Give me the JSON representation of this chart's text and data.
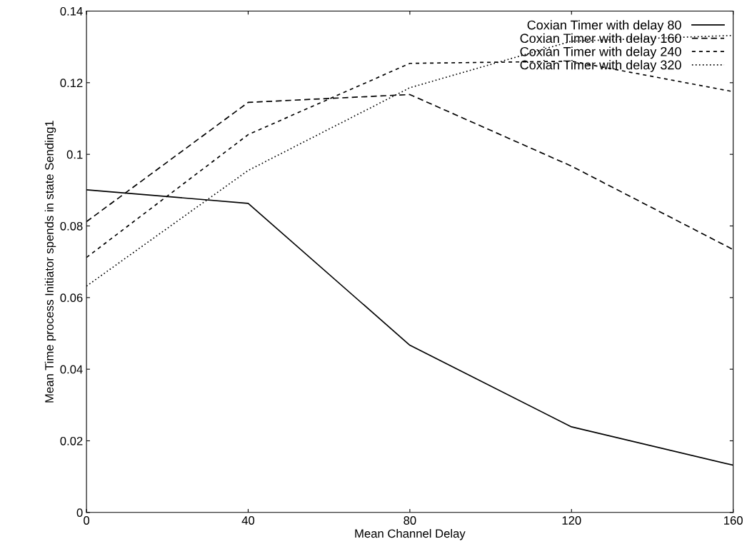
{
  "chart_data": {
    "type": "line",
    "xlabel": "Mean Channel Delay",
    "ylabel": "Mean Time process Initiator spends in state Sending1",
    "x": [
      0,
      40,
      80,
      120,
      160
    ],
    "series": [
      {
        "name": "Coxian Timer with delay 80",
        "color": "#000000",
        "line_style": "solid",
        "values": [
          0.0901,
          0.0863,
          0.0467,
          0.0239,
          0.0132
        ]
      },
      {
        "name": "Coxian Timer with delay 160",
        "color": "#000000",
        "line_style": "dashed",
        "values": [
          0.0812,
          0.1145,
          0.1167,
          0.0967,
          0.0734
        ]
      },
      {
        "name": "Coxian Timer with delay 240",
        "color": "#000000",
        "line_style": "dashed",
        "values": [
          0.0712,
          0.1055,
          0.1254,
          0.126,
          0.1175
        ]
      },
      {
        "name": "Coxian Timer with delay 320",
        "color": "#000000",
        "line_style": "dotted",
        "values": [
          0.0632,
          0.0955,
          0.1186,
          0.1316,
          0.1332
        ]
      }
    ],
    "xlim": [
      0,
      160
    ],
    "xticks": [
      0,
      40,
      80,
      120,
      160
    ],
    "ylim": [
      0,
      0.14
    ],
    "yticks": [
      0,
      0.02,
      0.04,
      0.06,
      0.08,
      0.1,
      0.12,
      0.14
    ],
    "grid": false,
    "legend": "top right",
    "marker": "none"
  }
}
